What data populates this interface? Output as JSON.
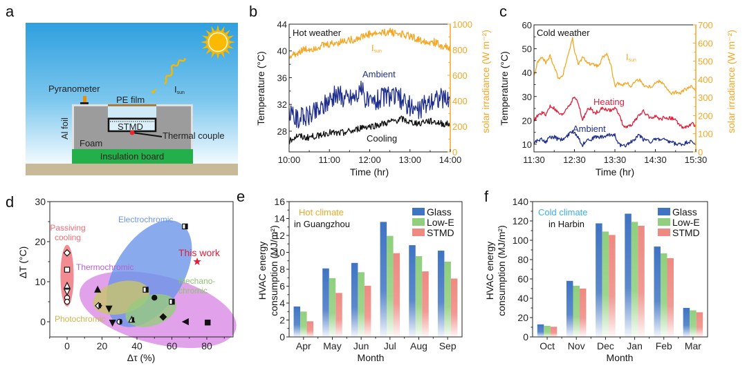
{
  "panel_labels": {
    "a": "a",
    "b": "b",
    "c": "c",
    "d": "d",
    "e": "e",
    "f": "f"
  },
  "colors": {
    "orange": "#F5A623",
    "navy": "#1F2E8C",
    "black": "#111111",
    "red": "#E0203A",
    "glass": "#3F74C4",
    "lowe": "#8FCF7E",
    "stmd": "#EE8A82",
    "cyan": "#39B0E8"
  },
  "schematic": {
    "pyranometer": "Pyranometer",
    "pe_film": "PE film",
    "isun_main": "I",
    "isun_sub": "sun",
    "al_foil": "Al foil",
    "stmd": "STMD",
    "thermal_couple": "Thermal couple",
    "foam": "Foam",
    "insulation_board": "Insulation board"
  },
  "chart_data": [
    {
      "id": "b",
      "type": "line",
      "title": "Hot weather",
      "xlabel": "Time (hr)",
      "ylabel": "Temperature (°C)",
      "y2label": "solar irradiance (W m⁻²)",
      "x_ticks": [
        "10:00",
        "11:00",
        "12:00",
        "13:00",
        "14:00"
      ],
      "xlim_hours": [
        10,
        14
      ],
      "ylim": [
        24.9,
        44
      ],
      "y_ticks": [
        28,
        32,
        36,
        40,
        44
      ],
      "y2lim": [
        0,
        1000
      ],
      "y2_ticks": [
        0,
        200,
        400,
        600,
        800,
        1000
      ],
      "series": [
        {
          "name": "I_sun",
          "label_main": "I",
          "label_sub": "sun",
          "axis": "right",
          "color": "#F5A623",
          "x": [
            10.0,
            10.2,
            10.4,
            10.6,
            10.8,
            11.0,
            11.2,
            11.4,
            11.6,
            11.8,
            12.0,
            12.2,
            12.4,
            12.5,
            12.6,
            12.8,
            13.0,
            13.2,
            13.4,
            13.6,
            13.8,
            14.0
          ],
          "y": [
            740,
            780,
            800,
            810,
            830,
            840,
            855,
            870,
            880,
            900,
            920,
            925,
            935,
            950,
            930,
            925,
            905,
            880,
            870,
            860,
            830,
            810
          ]
        },
        {
          "name": "Ambient",
          "axis": "left",
          "color": "#1F2E8C",
          "x": [
            10.0,
            10.2,
            10.4,
            10.6,
            10.8,
            11.0,
            11.2,
            11.4,
            11.6,
            11.8,
            12.0,
            12.2,
            12.4,
            12.6,
            12.8,
            13.0,
            13.2,
            13.4,
            13.6,
            13.8,
            14.0
          ],
          "y": [
            30.5,
            30.0,
            30.2,
            30.8,
            31.5,
            33.0,
            33.5,
            33.0,
            33.2,
            34.0,
            32.0,
            32.8,
            33.3,
            33.0,
            32.8,
            31.8,
            31.0,
            32.0,
            33.0,
            32.8,
            32.5
          ]
        },
        {
          "name": "Cooling",
          "axis": "left",
          "color": "#111111",
          "x": [
            10.0,
            10.2,
            10.4,
            10.6,
            10.8,
            11.0,
            11.2,
            11.4,
            11.6,
            11.8,
            12.0,
            12.2,
            12.4,
            12.6,
            12.8,
            13.0,
            13.2,
            13.4,
            13.6,
            13.8,
            14.0
          ],
          "y": [
            26.5,
            27.3,
            27.0,
            27.2,
            27.5,
            27.8,
            27.6,
            27.9,
            28.0,
            28.6,
            28.7,
            28.9,
            29.2,
            29.5,
            29.8,
            29.3,
            29.2,
            29.5,
            29.4,
            29.1,
            29.0
          ]
        }
      ]
    },
    {
      "id": "c",
      "type": "line",
      "title": "Cold weather",
      "xlabel": "Time (hr)",
      "ylabel": "Temperature (°C)",
      "y2label": "solar irradiance (W m⁻²)",
      "x_ticks": [
        "11:30",
        "12:30",
        "13:30",
        "14:30",
        "15:30"
      ],
      "xlim_hours": [
        11.5,
        15.5
      ],
      "ylim": [
        6.8,
        60
      ],
      "y_ticks": [
        10,
        20,
        30,
        40,
        50,
        60
      ],
      "y2lim": [
        0,
        700
      ],
      "y2_ticks": [
        0,
        100,
        200,
        300,
        400,
        500,
        600,
        700
      ],
      "series": [
        {
          "name": "I_sun",
          "label_main": "I",
          "label_sub": "sun",
          "axis": "right",
          "color": "#F5A623",
          "x": [
            11.5,
            11.6,
            11.7,
            11.8,
            11.9,
            12.0,
            12.1,
            12.2,
            12.3,
            12.4,
            12.45,
            12.5,
            12.6,
            12.7,
            12.8,
            12.9,
            13.0,
            13.1,
            13.2,
            13.3,
            13.4,
            13.5,
            13.6,
            13.7,
            13.8,
            13.9,
            14.0,
            14.1,
            14.2,
            14.3,
            14.4,
            14.5,
            14.6,
            14.7,
            14.8,
            14.9,
            15.0,
            15.1,
            15.2,
            15.3,
            15.4,
            15.5
          ],
          "y": [
            420,
            500,
            520,
            490,
            530,
            470,
            410,
            410,
            500,
            580,
            630,
            560,
            480,
            520,
            500,
            480,
            480,
            470,
            520,
            540,
            480,
            360,
            380,
            370,
            380,
            360,
            390,
            400,
            370,
            360,
            360,
            380,
            390,
            380,
            340,
            320,
            330,
            320,
            340,
            350,
            360,
            340
          ]
        },
        {
          "name": "Heating",
          "axis": "left",
          "color": "#E0203A",
          "x": [
            11.5,
            11.6,
            11.7,
            11.8,
            11.9,
            12.0,
            12.1,
            12.2,
            12.3,
            12.4,
            12.5,
            12.6,
            12.7,
            12.8,
            12.9,
            13.0,
            13.1,
            13.2,
            13.3,
            13.4,
            13.5,
            13.6,
            13.7,
            13.8,
            13.9,
            14.0,
            14.1,
            14.2,
            14.3,
            14.4,
            14.5,
            14.6,
            14.7,
            14.8,
            14.9,
            15.0,
            15.1,
            15.2,
            15.3,
            15.4,
            15.5
          ],
          "y": [
            20,
            22,
            23,
            22.5,
            26,
            25,
            23,
            22,
            25,
            27,
            30,
            27,
            20,
            24,
            25,
            23,
            24,
            25,
            24.5,
            24,
            25,
            23,
            18,
            17,
            18,
            20,
            22,
            24,
            22,
            21,
            22,
            20,
            21,
            21,
            21,
            20,
            18,
            17,
            17,
            19,
            17
          ]
        },
        {
          "name": "Ambient",
          "axis": "left",
          "color": "#1F2E8C",
          "x": [
            11.5,
            11.6,
            11.7,
            11.8,
            11.9,
            12.0,
            12.1,
            12.2,
            12.3,
            12.4,
            12.5,
            12.6,
            12.7,
            12.8,
            12.9,
            13.0,
            13.1,
            13.2,
            13.3,
            13.4,
            13.5,
            13.6,
            13.7,
            13.8,
            13.9,
            14.0,
            14.1,
            14.2,
            14.3,
            14.4,
            14.5,
            14.6,
            14.7,
            14.8,
            14.9,
            15.0,
            15.1,
            15.2,
            15.3,
            15.4,
            15.5
          ],
          "y": [
            11,
            11.5,
            12,
            11,
            13,
            13,
            12,
            12,
            13,
            15,
            15,
            13,
            9.5,
            12,
            12,
            13,
            13,
            13,
            13.5,
            14,
            14,
            10,
            9,
            10,
            11,
            12,
            14,
            12,
            12,
            11,
            12,
            12,
            12,
            11,
            11,
            10,
            10,
            10,
            11,
            11,
            10
          ]
        }
      ]
    },
    {
      "id": "d",
      "type": "scatter",
      "xlabel": "Δτ (%)",
      "ylabel": "ΔT (°C)",
      "xlim": [
        -10,
        90
      ],
      "ylim": [
        -4,
        30
      ],
      "x_ticks": [
        0,
        20,
        40,
        60,
        80
      ],
      "y_ticks": [
        0,
        10,
        20,
        30
      ],
      "groups": [
        {
          "name": "Passiving cooling",
          "label_lines": [
            "Passiving",
            "cooling"
          ],
          "color": "#EE6F78",
          "points": [
            {
              "x": 0,
              "y": 17.2,
              "marker": "diamond-open"
            },
            {
              "x": 0,
              "y": 13,
              "marker": "square-open"
            },
            {
              "x": 0,
              "y": 9,
              "marker": "triangle-up-open"
            },
            {
              "x": 0,
              "y": 7.5,
              "marker": "triangle-down-open"
            },
            {
              "x": 0,
              "y": 6,
              "marker": "circle-open"
            },
            {
              "x": 0,
              "y": 5,
              "marker": "circle-open"
            }
          ]
        },
        {
          "name": "Electrochromic",
          "label_lines": [
            "Electrochromic"
          ],
          "color": "#6C95E8",
          "points": [
            {
              "x": 67.5,
              "y": 23.8,
              "marker": "square-half"
            },
            {
              "x": 26,
              "y": -0.2,
              "marker": "triangle-down"
            },
            {
              "x": 30,
              "y": 0,
              "marker": "circle-half"
            }
          ]
        },
        {
          "name": "Thermochromic",
          "label_lines": [
            "Thermochromic"
          ],
          "color": "#D98BE6",
          "points": [
            {
              "x": 17.5,
              "y": 8,
              "marker": "triangle-up"
            },
            {
              "x": 50,
              "y": 6,
              "marker": "circle"
            },
            {
              "x": 55,
              "y": 1.2,
              "marker": "diamond"
            },
            {
              "x": 68,
              "y": 0,
              "marker": "triangle-left"
            },
            {
              "x": 80.5,
              "y": -0.2,
              "marker": "square"
            },
            {
              "x": 37,
              "y": 0.5,
              "marker": "triangle-up-half"
            }
          ]
        },
        {
          "name": "Photochromic",
          "label_lines": [
            "Photochromic"
          ],
          "color": "#C9C46A",
          "points": [
            {
              "x": 18,
              "y": 4,
              "marker": "diamond-half"
            },
            {
              "x": 24,
              "y": 3.3,
              "marker": "triangle-down"
            },
            {
              "x": 45,
              "y": 8,
              "marker": "square-half"
            }
          ]
        },
        {
          "name": "Mechanochromic",
          "label_lines": [
            "Mechano-",
            "chromic"
          ],
          "color": "#97CC7E",
          "points": [
            {
              "x": 60,
              "y": 5,
              "marker": "square-half"
            }
          ]
        },
        {
          "name": "This work",
          "label_lines": [
            "This work"
          ],
          "color": "#E0203A",
          "points": [
            {
              "x": 74.5,
              "y": 15,
              "marker": "star"
            }
          ]
        }
      ]
    },
    {
      "id": "e",
      "type": "bar",
      "annotation_main": "Hot climate",
      "annotation_sub": "in Guangzhou",
      "xlabel": "Month",
      "ylabel_lines": [
        "HVAC energy",
        "consumption (MJ/m²)"
      ],
      "ylim": [
        0,
        16
      ],
      "y_ticks": [
        0,
        2,
        4,
        6,
        8,
        10,
        12,
        14,
        16
      ],
      "categories": [
        "Apr",
        "May",
        "Jun",
        "Jul",
        "Aug",
        "Sep"
      ],
      "series": [
        {
          "name": "Glass",
          "color": "#3F74C4",
          "values": [
            3.6,
            8.1,
            8.75,
            13.6,
            10.85,
            10.2
          ]
        },
        {
          "name": "Low-E",
          "color": "#8FCF7E",
          "values": [
            3.0,
            6.95,
            7.65,
            11.95,
            9.55,
            8.9
          ]
        },
        {
          "name": "STMD",
          "color": "#EE8A82",
          "values": [
            1.85,
            5.2,
            6.05,
            9.9,
            7.75,
            6.9
          ]
        }
      ],
      "legend": "top-right"
    },
    {
      "id": "f",
      "type": "bar",
      "annotation_main": "Cold climate",
      "annotation_sub": "in Harbin",
      "xlabel": "Month",
      "ylabel_lines": [
        "HVAC energy",
        "consumption (MJ/m²)"
      ],
      "ylim": [
        0,
        140
      ],
      "y_ticks": [
        0,
        20,
        40,
        60,
        80,
        100,
        120,
        140
      ],
      "categories": [
        "Oct",
        "Nov",
        "Dec",
        "Jan",
        "Feb",
        "Mar"
      ],
      "series": [
        {
          "name": "Glass",
          "color": "#3F74C4",
          "values": [
            13,
            58,
            117.5,
            127.5,
            93.5,
            30
          ]
        },
        {
          "name": "Low-E",
          "color": "#8FCF7E",
          "values": [
            11.5,
            53,
            109,
            119,
            86.5,
            27.5
          ]
        },
        {
          "name": "STMD",
          "color": "#EE8A82",
          "values": [
            10.5,
            50,
            105.5,
            115,
            81.5,
            25.5
          ]
        }
      ],
      "legend": "top-right"
    }
  ]
}
